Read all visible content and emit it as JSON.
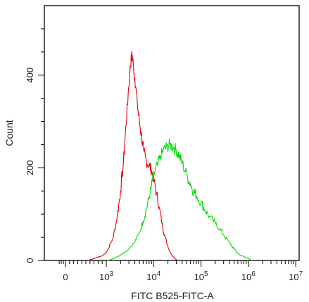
{
  "chart_data": {
    "type": "line",
    "title": "",
    "xlabel": "FITC B525-FITC-A",
    "ylabel": "Count",
    "x_scale": "biexponential",
    "xlim": [
      -400,
      10000000
    ],
    "ylim": [
      0,
      550
    ],
    "x_ticks": [
      {
        "value": 0,
        "base": "0",
        "exp": ""
      },
      {
        "value": 1000,
        "base": "10",
        "exp": "3"
      },
      {
        "value": 10000,
        "base": "10",
        "exp": "4"
      },
      {
        "value": 100000,
        "base": "10",
        "exp": "5"
      },
      {
        "value": 1000000,
        "base": "10",
        "exp": "6"
      },
      {
        "value": 10000000,
        "base": "10",
        "exp": "7"
      }
    ],
    "y_ticks": [
      0,
      200,
      400
    ],
    "grid": false,
    "legend": "none",
    "series": [
      {
        "color": "#dd0000",
        "points": [
          [
            560,
            0
          ],
          [
            700,
            4
          ],
          [
            900,
            10
          ],
          [
            1100,
            25
          ],
          [
            1400,
            50
          ],
          [
            1700,
            95
          ],
          [
            2000,
            150
          ],
          [
            2300,
            210
          ],
          [
            2600,
            290
          ],
          [
            2900,
            360
          ],
          [
            3200,
            420
          ],
          [
            3500,
            445
          ],
          [
            3700,
            425
          ],
          [
            4000,
            395
          ],
          [
            4500,
            340
          ],
          [
            5000,
            300
          ],
          [
            5600,
            265
          ],
          [
            6200,
            235
          ],
          [
            7000,
            215
          ],
          [
            8000,
            205
          ],
          [
            9000,
            195
          ],
          [
            10000,
            175
          ],
          [
            11500,
            145
          ],
          [
            13000,
            115
          ],
          [
            15000,
            80
          ],
          [
            17000,
            55
          ],
          [
            20000,
            30
          ],
          [
            24000,
            12
          ],
          [
            28000,
            4
          ],
          [
            32000,
            0
          ]
        ]
      },
      {
        "color": "#00dd00",
        "points": [
          [
            1100,
            0
          ],
          [
            1500,
            5
          ],
          [
            2000,
            12
          ],
          [
            3000,
            25
          ],
          [
            4000,
            40
          ],
          [
            5000,
            60
          ],
          [
            6000,
            85
          ],
          [
            7000,
            110
          ],
          [
            8000,
            135
          ],
          [
            9000,
            160
          ],
          [
            10000,
            185
          ],
          [
            12000,
            205
          ],
          [
            14000,
            225
          ],
          [
            16000,
            238
          ],
          [
            19000,
            245
          ],
          [
            22000,
            250
          ],
          [
            26000,
            245
          ],
          [
            30000,
            238
          ],
          [
            35000,
            225
          ],
          [
            40000,
            210
          ],
          [
            50000,
            185
          ],
          [
            60000,
            165
          ],
          [
            70000,
            150
          ],
          [
            80000,
            140
          ],
          [
            100000,
            125
          ],
          [
            120000,
            110
          ],
          [
            150000,
            95
          ],
          [
            200000,
            80
          ],
          [
            250000,
            68
          ],
          [
            300000,
            55
          ],
          [
            400000,
            38
          ],
          [
            500000,
            25
          ],
          [
            600000,
            15
          ],
          [
            800000,
            8
          ],
          [
            1000000,
            4
          ],
          [
            1200000,
            0
          ]
        ]
      }
    ]
  }
}
